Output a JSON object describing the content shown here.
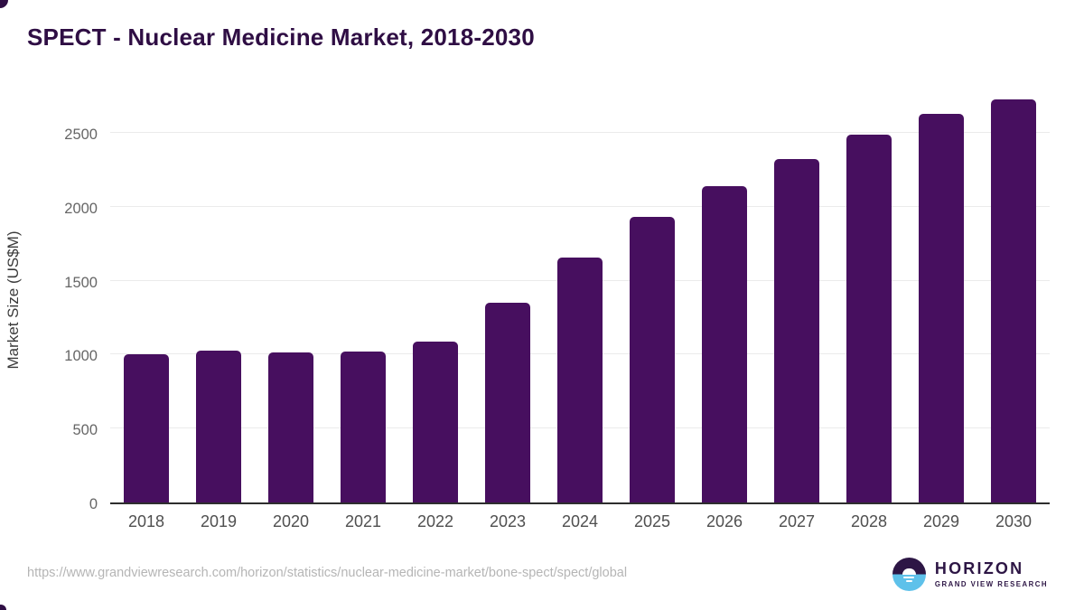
{
  "page": {
    "title": "SPECT - Nuclear Medicine Market, 2018-2030",
    "source_url": "https://www.grandviewresearch.com/horizon/statistics/nuclear-medicine-market/bone-spect/spect/global"
  },
  "branding": {
    "logo_name": "HORIZON",
    "logo_subtext": "GRAND VIEW RESEARCH"
  },
  "colors": {
    "bar_color": "#470F5F",
    "title_color": "#2F0E44",
    "axis_title_color": "#3A3A3A",
    "tick_color": "#666666",
    "xtick_color": "#4F4F4F",
    "gridline": "#EBEBEB",
    "axis_line": "#2E2E2E",
    "url_color": "#B5B5B5",
    "logo_purple": "#2D1645",
    "logo_blue": "#5EC1EA"
  },
  "chart_data": {
    "type": "bar",
    "title": "SPECT - Nuclear Medicine Market, 2018-2030",
    "categories": [
      "2018",
      "2019",
      "2020",
      "2021",
      "2022",
      "2023",
      "2024",
      "2025",
      "2026",
      "2027",
      "2028",
      "2029",
      "2030"
    ],
    "values": [
      1000,
      1030,
      1015,
      1020,
      1090,
      1350,
      1655,
      1935,
      2140,
      2325,
      2490,
      2630,
      2725
    ],
    "xlabel": "",
    "ylabel": "Market Size (US$M)",
    "ylim": [
      0,
      2800
    ],
    "yticks": [
      0,
      500,
      1000,
      1500,
      2000,
      2500
    ],
    "grid": true,
    "legend": false,
    "bar_color": "#470F5F"
  }
}
